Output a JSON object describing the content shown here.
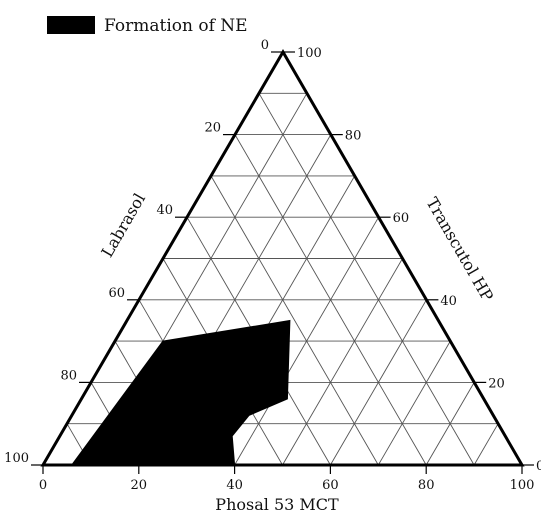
{
  "chart_data": {
    "type": "ternary",
    "legend": {
      "label": "Formation of NE",
      "color": "#000000",
      "placement": "top-left"
    },
    "axes": {
      "bottom": {
        "label": "Phosal 53 MCT",
        "ticks": [
          "0",
          "20",
          "40",
          "60",
          "80",
          "100"
        ],
        "range": [
          0,
          100
        ]
      },
      "left": {
        "label": "Labrasol",
        "ticks": [
          "0",
          "20",
          "40",
          "60",
          "80",
          "100"
        ],
        "range": [
          0,
          100
        ]
      },
      "right": {
        "label": "Transcutol HP",
        "ticks": [
          "0",
          "20",
          "40",
          "60",
          "80",
          "100"
        ],
        "range": [
          0,
          100
        ]
      }
    },
    "grid": true,
    "grid_step": 10,
    "region": {
      "name": "Formation of NE",
      "color": "#000000",
      "points": [
        {
          "phosal": 6,
          "labrasol": 94,
          "transcutol": 0
        },
        {
          "phosal": 40,
          "labrasol": 60,
          "transcutol": 0
        },
        {
          "phosal": 36,
          "labrasol": 57,
          "transcutol": 7
        },
        {
          "phosal": 37,
          "labrasol": 51,
          "transcutol": 12
        },
        {
          "phosal": 43,
          "labrasol": 41,
          "transcutol": 16
        },
        {
          "phosal": 34,
          "labrasol": 31,
          "transcutol": 35
        },
        {
          "phosal": 10,
          "labrasol": 60,
          "transcutol": 30
        }
      ]
    }
  }
}
